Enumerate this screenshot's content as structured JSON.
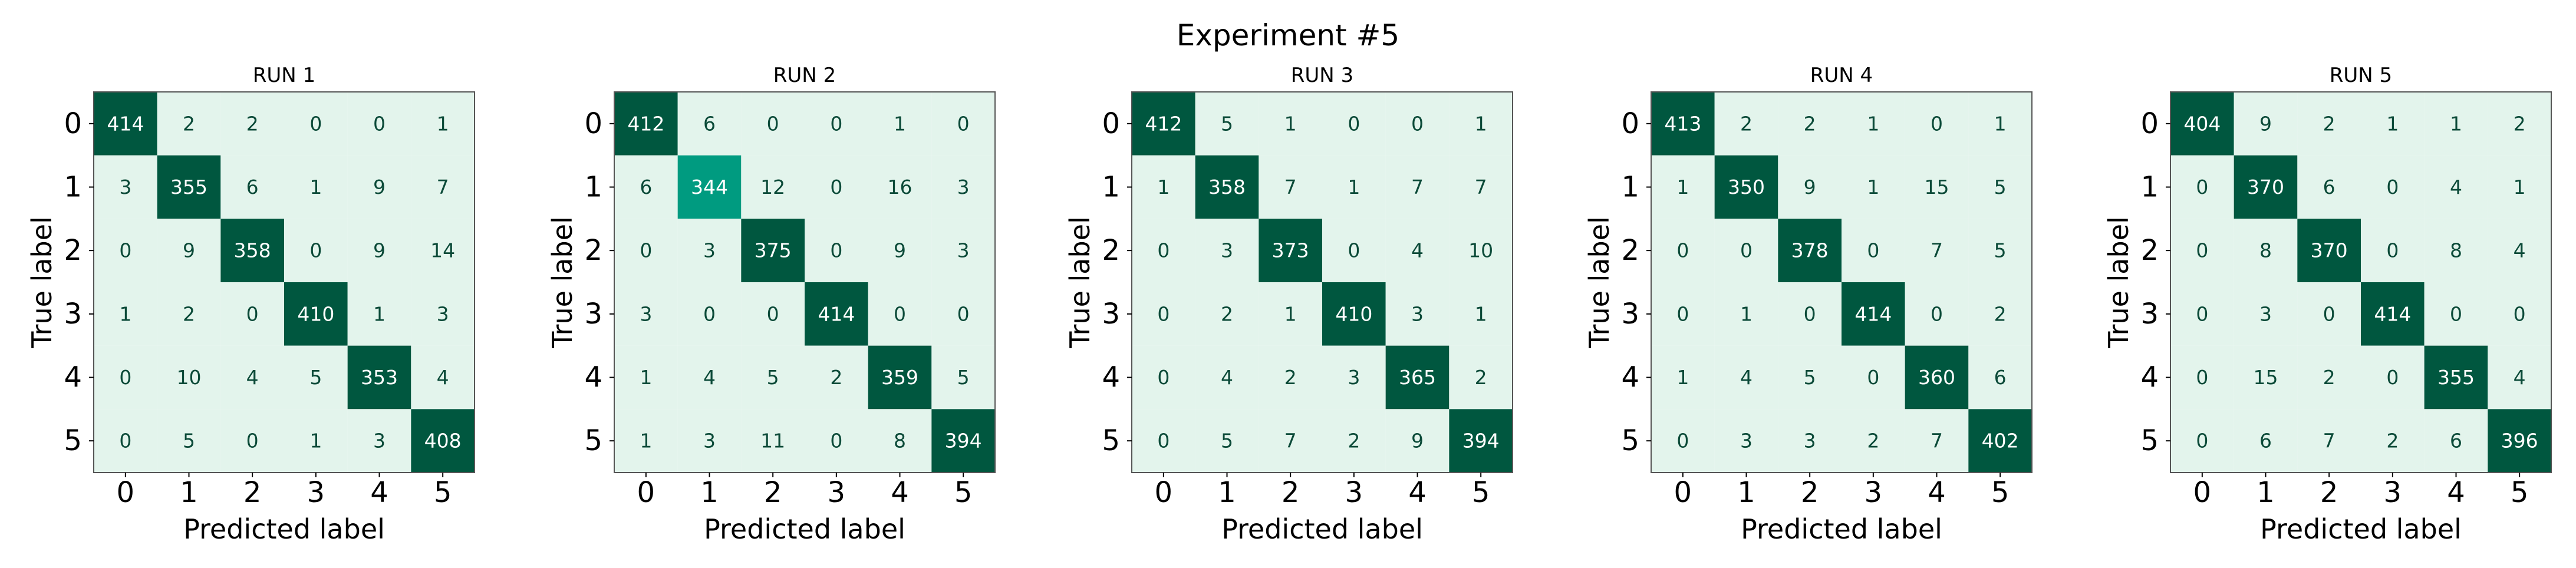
{
  "title": "Experiment #5",
  "chart_data": [
    {
      "type": "heatmap",
      "title": "RUN 1",
      "xlabel": "Predicted label",
      "ylabel": "True label",
      "categories": [
        "0",
        "1",
        "2",
        "3",
        "4",
        "5"
      ],
      "values": [
        [
          414,
          2,
          2,
          0,
          0,
          1
        ],
        [
          3,
          355,
          6,
          1,
          9,
          7
        ],
        [
          0,
          9,
          358,
          0,
          9,
          14
        ],
        [
          1,
          2,
          0,
          410,
          1,
          3
        ],
        [
          0,
          10,
          4,
          5,
          353,
          4
        ],
        [
          0,
          5,
          0,
          1,
          3,
          408
        ]
      ],
      "colors": [
        [
          "#00573f",
          "#e3f4ec",
          "#e3f4ec",
          "#e3f4ec",
          "#e3f4ec",
          "#e3f4ec"
        ],
        [
          "#e3f4ec",
          "#00573f",
          "#e3f4ec",
          "#e3f4ec",
          "#e3f4ec",
          "#e3f4ec"
        ],
        [
          "#e3f4ec",
          "#e3f4ec",
          "#00573f",
          "#e3f4ec",
          "#e3f4ec",
          "#e3f4ec"
        ],
        [
          "#e3f4ec",
          "#e3f4ec",
          "#e3f4ec",
          "#00573f",
          "#e3f4ec",
          "#e3f4ec"
        ],
        [
          "#e3f4ec",
          "#e3f4ec",
          "#e3f4ec",
          "#e3f4ec",
          "#00573f",
          "#e3f4ec"
        ],
        [
          "#e3f4ec",
          "#e3f4ec",
          "#e3f4ec",
          "#e3f4ec",
          "#e3f4ec",
          "#00573f"
        ]
      ]
    },
    {
      "type": "heatmap",
      "title": "RUN 2",
      "xlabel": "Predicted label",
      "ylabel": "True label",
      "categories": [
        "0",
        "1",
        "2",
        "3",
        "4",
        "5"
      ],
      "values": [
        [
          412,
          6,
          0,
          0,
          1,
          0
        ],
        [
          6,
          344,
          12,
          0,
          16,
          3
        ],
        [
          0,
          3,
          375,
          0,
          9,
          3
        ],
        [
          3,
          0,
          0,
          414,
          0,
          0
        ],
        [
          1,
          4,
          5,
          2,
          359,
          5
        ],
        [
          1,
          3,
          11,
          0,
          8,
          394
        ]
      ],
      "colors": [
        [
          "#00573f",
          "#e3f4ec",
          "#e3f4ec",
          "#e3f4ec",
          "#e3f4ec",
          "#e3f4ec"
        ],
        [
          "#e3f4ec",
          "#009b80",
          "#e3f4ec",
          "#e3f4ec",
          "#e3f4ec",
          "#e3f4ec"
        ],
        [
          "#e3f4ec",
          "#e3f4ec",
          "#00573f",
          "#e3f4ec",
          "#e3f4ec",
          "#e3f4ec"
        ],
        [
          "#e3f4ec",
          "#e3f4ec",
          "#e3f4ec",
          "#00573f",
          "#e3f4ec",
          "#e3f4ec"
        ],
        [
          "#e3f4ec",
          "#e3f4ec",
          "#e3f4ec",
          "#e3f4ec",
          "#00573f",
          "#e3f4ec"
        ],
        [
          "#e3f4ec",
          "#e3f4ec",
          "#e3f4ec",
          "#e3f4ec",
          "#e3f4ec",
          "#00573f"
        ]
      ]
    },
    {
      "type": "heatmap",
      "title": "RUN 3",
      "xlabel": "Predicted label",
      "ylabel": "True label",
      "categories": [
        "0",
        "1",
        "2",
        "3",
        "4",
        "5"
      ],
      "values": [
        [
          412,
          5,
          1,
          0,
          0,
          1
        ],
        [
          1,
          358,
          7,
          1,
          7,
          7
        ],
        [
          0,
          3,
          373,
          0,
          4,
          10
        ],
        [
          0,
          2,
          1,
          410,
          3,
          1
        ],
        [
          0,
          4,
          2,
          3,
          365,
          2
        ],
        [
          0,
          5,
          7,
          2,
          9,
          394
        ]
      ],
      "colors": [
        [
          "#00573f",
          "#e3f4ec",
          "#e3f4ec",
          "#e3f4ec",
          "#e3f4ec",
          "#e3f4ec"
        ],
        [
          "#e3f4ec",
          "#00573f",
          "#e3f4ec",
          "#e3f4ec",
          "#e3f4ec",
          "#e3f4ec"
        ],
        [
          "#e3f4ec",
          "#e3f4ec",
          "#00573f",
          "#e3f4ec",
          "#e3f4ec",
          "#e3f4ec"
        ],
        [
          "#e3f4ec",
          "#e3f4ec",
          "#e3f4ec",
          "#00573f",
          "#e3f4ec",
          "#e3f4ec"
        ],
        [
          "#e3f4ec",
          "#e3f4ec",
          "#e3f4ec",
          "#e3f4ec",
          "#00573f",
          "#e3f4ec"
        ],
        [
          "#e3f4ec",
          "#e3f4ec",
          "#e3f4ec",
          "#e3f4ec",
          "#e3f4ec",
          "#00573f"
        ]
      ]
    },
    {
      "type": "heatmap",
      "title": "RUN 4",
      "xlabel": "Predicted label",
      "ylabel": "True label",
      "categories": [
        "0",
        "1",
        "2",
        "3",
        "4",
        "5"
      ],
      "values": [
        [
          413,
          2,
          2,
          1,
          0,
          1
        ],
        [
          1,
          350,
          9,
          1,
          15,
          5
        ],
        [
          0,
          0,
          378,
          0,
          7,
          5
        ],
        [
          0,
          1,
          0,
          414,
          0,
          2
        ],
        [
          1,
          4,
          5,
          0,
          360,
          6
        ],
        [
          0,
          3,
          3,
          2,
          7,
          402
        ]
      ],
      "colors": [
        [
          "#00573f",
          "#e3f4ec",
          "#e3f4ec",
          "#e3f4ec",
          "#e3f4ec",
          "#e3f4ec"
        ],
        [
          "#e3f4ec",
          "#00573f",
          "#e3f4ec",
          "#e3f4ec",
          "#e3f4ec",
          "#e3f4ec"
        ],
        [
          "#e3f4ec",
          "#e3f4ec",
          "#00573f",
          "#e3f4ec",
          "#e3f4ec",
          "#e3f4ec"
        ],
        [
          "#e3f4ec",
          "#e3f4ec",
          "#e3f4ec",
          "#00573f",
          "#e3f4ec",
          "#e3f4ec"
        ],
        [
          "#e3f4ec",
          "#e3f4ec",
          "#e3f4ec",
          "#e3f4ec",
          "#00573f",
          "#e3f4ec"
        ],
        [
          "#e3f4ec",
          "#e3f4ec",
          "#e3f4ec",
          "#e3f4ec",
          "#e3f4ec",
          "#00573f"
        ]
      ]
    },
    {
      "type": "heatmap",
      "title": "RUN 5",
      "xlabel": "Predicted label",
      "ylabel": "True label",
      "categories": [
        "0",
        "1",
        "2",
        "3",
        "4",
        "5"
      ],
      "values": [
        [
          404,
          9,
          2,
          1,
          1,
          2
        ],
        [
          0,
          370,
          6,
          0,
          4,
          1
        ],
        [
          0,
          8,
          370,
          0,
          8,
          4
        ],
        [
          0,
          3,
          0,
          414,
          0,
          0
        ],
        [
          0,
          15,
          2,
          0,
          355,
          4
        ],
        [
          0,
          6,
          7,
          2,
          6,
          396
        ]
      ],
      "colors": [
        [
          "#00573f",
          "#e3f4ec",
          "#e3f4ec",
          "#e3f4ec",
          "#e3f4ec",
          "#e3f4ec"
        ],
        [
          "#e3f4ec",
          "#00573f",
          "#e3f4ec",
          "#e3f4ec",
          "#e3f4ec",
          "#e3f4ec"
        ],
        [
          "#e3f4ec",
          "#e3f4ec",
          "#00573f",
          "#e3f4ec",
          "#e3f4ec",
          "#e3f4ec"
        ],
        [
          "#e3f4ec",
          "#e3f4ec",
          "#e3f4ec",
          "#00573f",
          "#e3f4ec",
          "#e3f4ec"
        ],
        [
          "#e3f4ec",
          "#e3f4ec",
          "#e3f4ec",
          "#e3f4ec",
          "#00573f",
          "#e3f4ec"
        ],
        [
          "#e3f4ec",
          "#e3f4ec",
          "#e3f4ec",
          "#e3f4ec",
          "#e3f4ec",
          "#00573f"
        ]
      ]
    }
  ]
}
